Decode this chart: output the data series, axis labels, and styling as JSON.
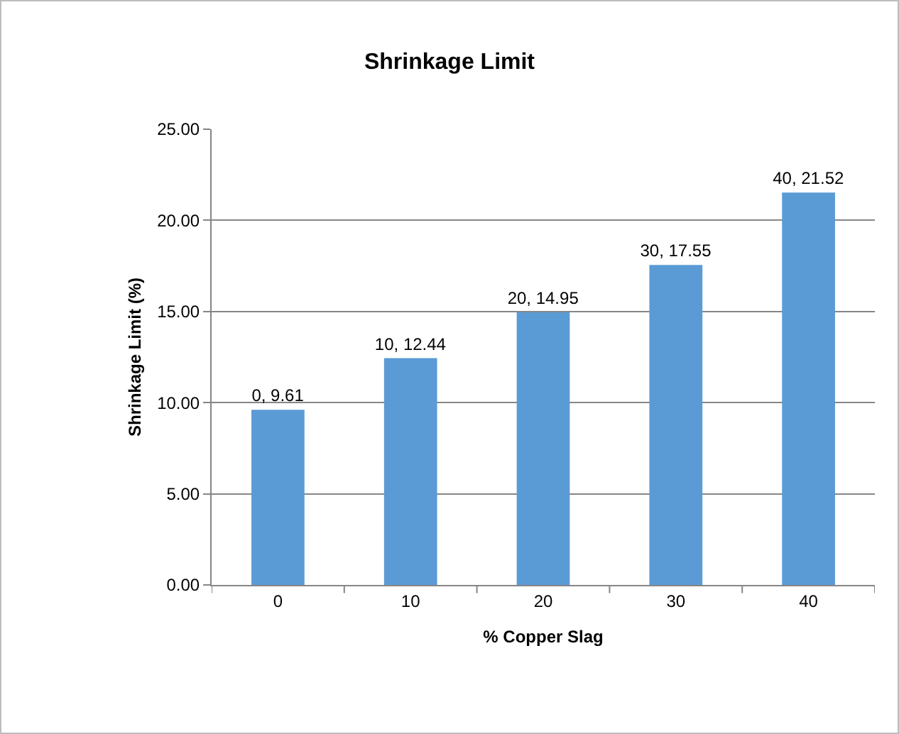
{
  "chart_data": {
    "type": "bar",
    "title": "Shrinkage Limit",
    "xlabel": "% Copper Slag",
    "ylabel": "Shrinkage Limit (%)",
    "categories": [
      "0",
      "10",
      "20",
      "30",
      "40"
    ],
    "values": [
      9.61,
      12.44,
      14.95,
      17.55,
      21.52
    ],
    "value_labels": [
      "0, 9.61",
      "10, 12.44",
      "20, 14.95",
      "30, 17.55",
      "40, 21.52"
    ],
    "color": "#5b9bd5",
    "ylim": [
      0,
      25
    ],
    "yticks": [
      {
        "value": 0,
        "label": "0.00"
      },
      {
        "value": 5,
        "label": "5.00"
      },
      {
        "value": 10,
        "label": "10.00"
      },
      {
        "value": 15,
        "label": "15.00"
      },
      {
        "value": 20,
        "label": "20.00"
      },
      {
        "value": 25,
        "label": "25.00"
      }
    ],
    "grid": "y"
  }
}
